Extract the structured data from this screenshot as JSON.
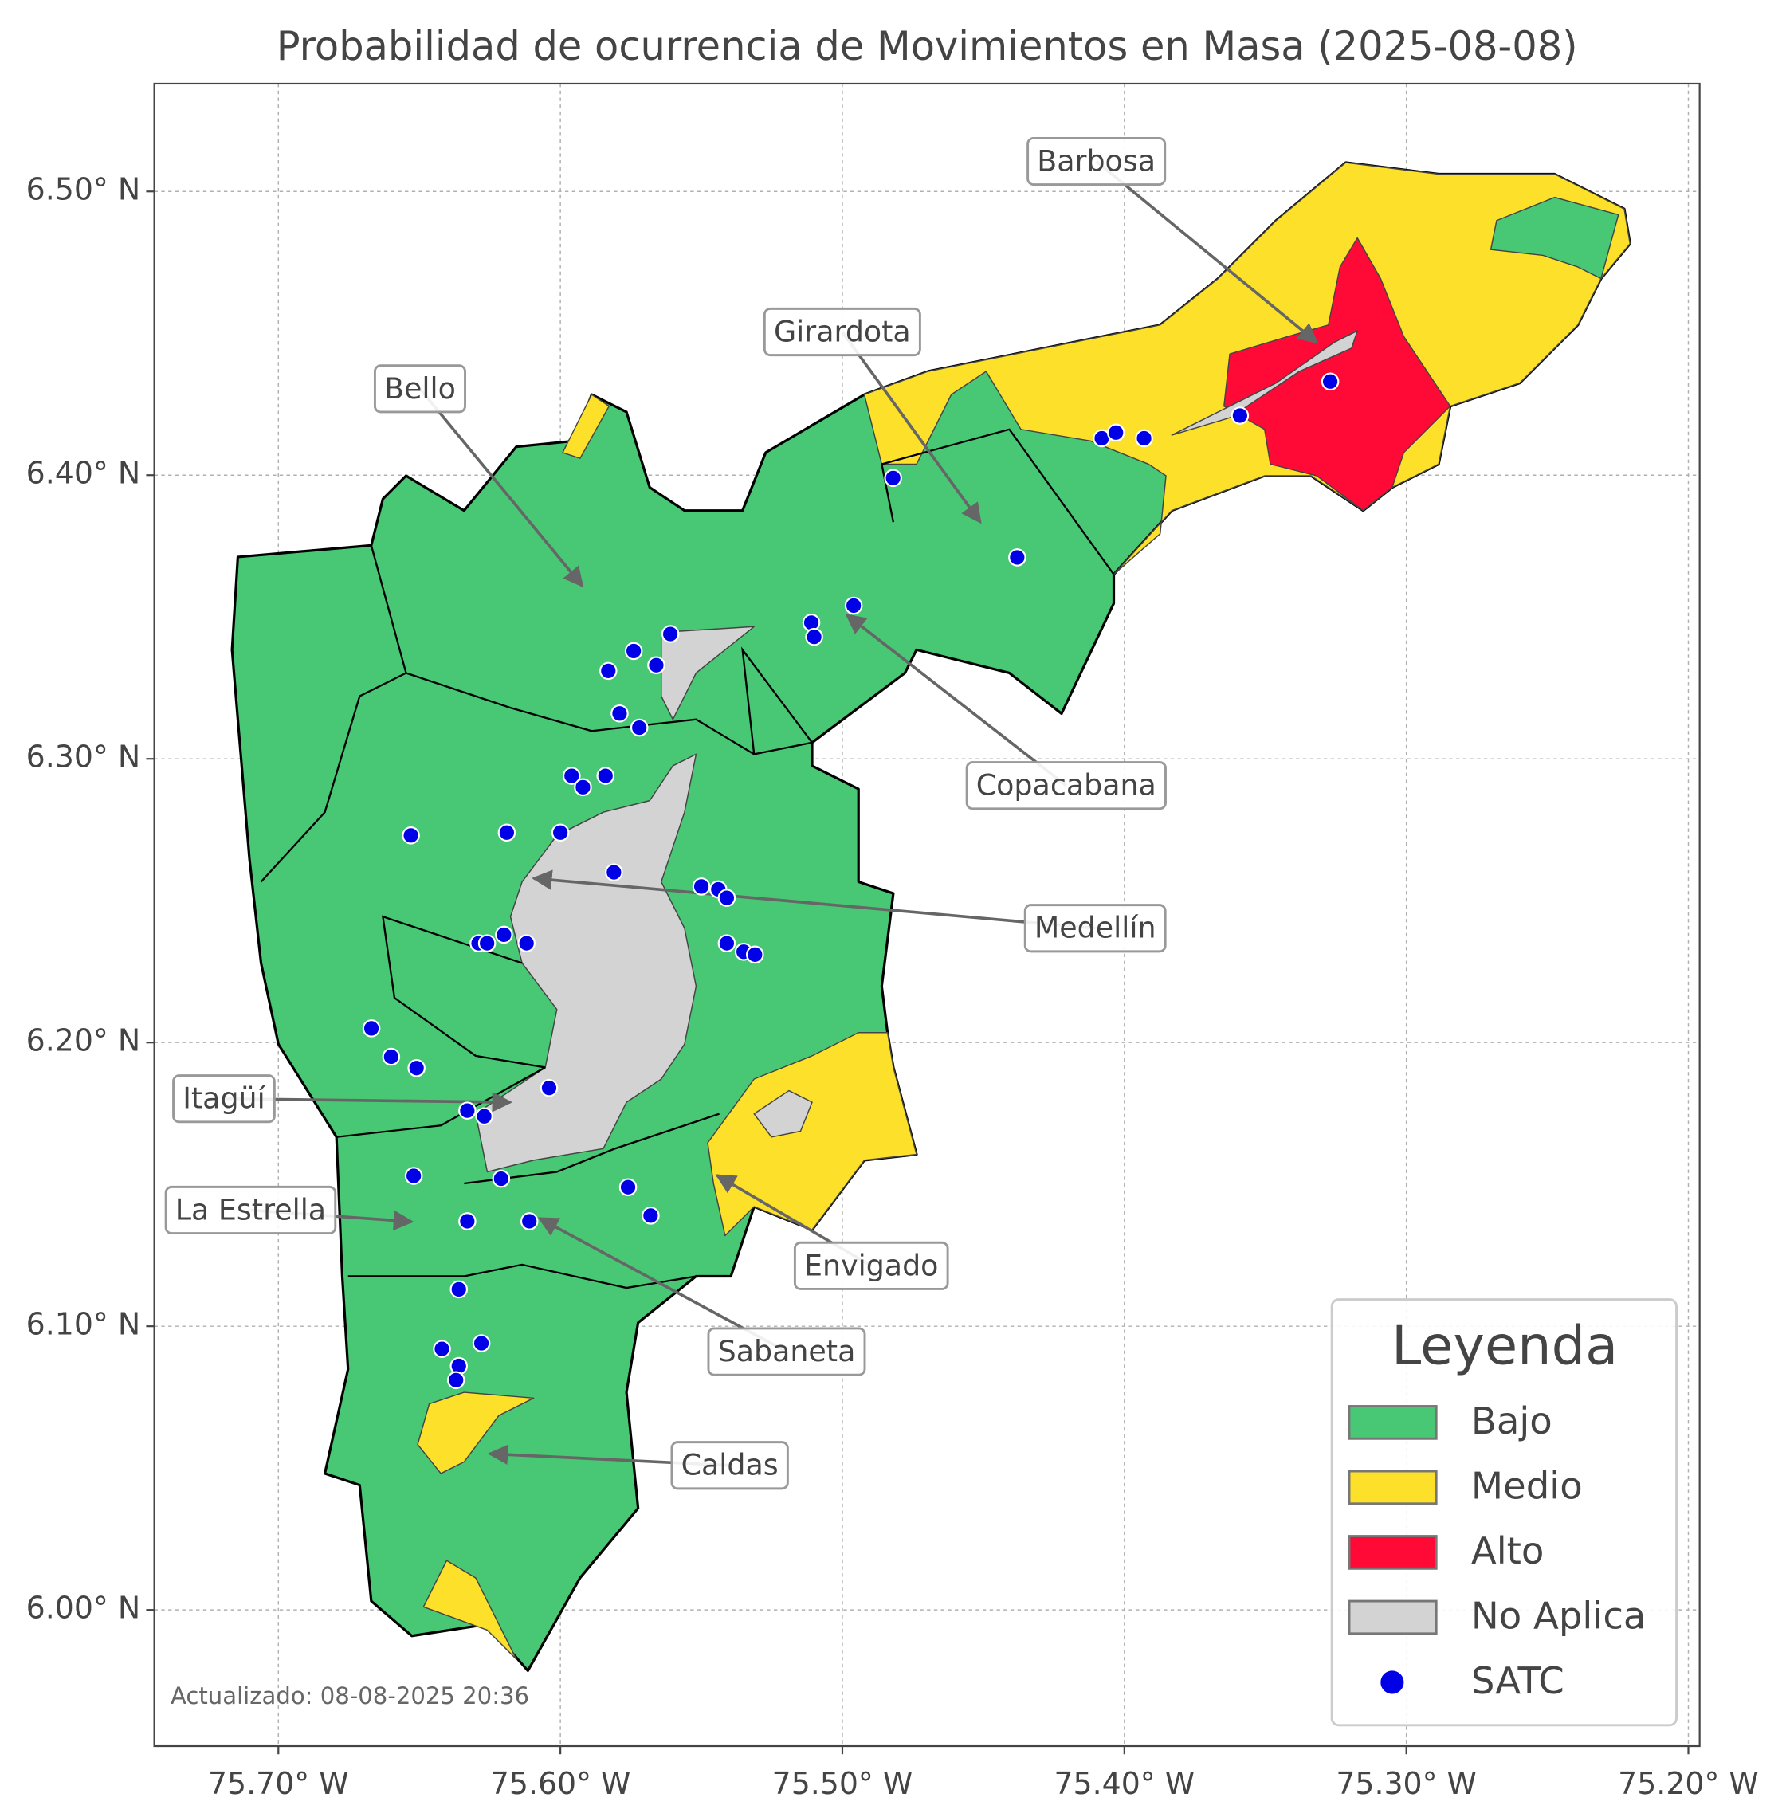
{
  "title": "Probabilidad de ocurrencia de Movimientos en Masa (2025-08-08)",
  "xlim": [
    -75.744,
    -75.196
  ],
  "ylim": [
    5.952,
    6.538
  ],
  "xticks": [
    {
      "value": -75.7,
      "label": "75.70° W"
    },
    {
      "value": -75.6,
      "label": "75.60° W"
    },
    {
      "value": -75.5,
      "label": "75.50° W"
    },
    {
      "value": -75.4,
      "label": "75.40° W"
    },
    {
      "value": -75.3,
      "label": "75.30° W"
    },
    {
      "value": -75.2,
      "label": "75.20° W"
    }
  ],
  "yticks": [
    {
      "value": 6.0,
      "label": "6.00° N"
    },
    {
      "value": 6.1,
      "label": "6.10° N"
    },
    {
      "value": 6.2,
      "label": "6.20° N"
    },
    {
      "value": 6.3,
      "label": "6.30° N"
    },
    {
      "value": 6.4,
      "label": "6.40° N"
    },
    {
      "value": 6.5,
      "label": "6.50° N"
    }
  ],
  "grid": true,
  "legend": {
    "title": "Leyenda",
    "items": [
      {
        "name": "Bajo",
        "color": "#48c774"
      },
      {
        "name": "Medio",
        "color": "#fde02a"
      },
      {
        "name": "Alto",
        "color": "#ff0a36"
      },
      {
        "name": "No Aplica",
        "color": "#d3d3d3"
      }
    ]
  },
  "stations": {
    "name": "SATC",
    "color": "#0000e6",
    "lon": [
      -75.482,
      -75.408,
      -75.403,
      -75.393,
      -75.359,
      -75.327,
      -75.438,
      -75.496,
      -75.511,
      -75.51,
      -75.561,
      -75.574,
      -75.583,
      -75.566,
      -75.579,
      -75.572,
      -75.596,
      -75.592,
      -75.584,
      -75.6,
      -75.653,
      -75.619,
      -75.581,
      -75.55,
      -75.544,
      -75.541,
      -75.629,
      -75.626,
      -75.62,
      -75.612,
      -75.541,
      -75.535,
      -75.531,
      -75.667,
      -75.66,
      -75.651,
      -75.604,
      -75.633,
      -75.627,
      -75.652,
      -75.621,
      -75.576,
      -75.568,
      -75.633,
      -75.611,
      -75.636,
      -75.642,
      -75.628,
      -75.636,
      -75.637
    ],
    "lat": [
      6.399,
      6.413,
      6.415,
      6.413,
      6.421,
      6.433,
      6.371,
      6.354,
      6.348,
      6.343,
      6.344,
      6.338,
      6.331,
      6.333,
      6.316,
      6.311,
      6.294,
      6.29,
      6.294,
      6.274,
      6.273,
      6.274,
      6.26,
      6.255,
      6.254,
      6.251,
      6.235,
      6.235,
      6.238,
      6.235,
      6.235,
      6.232,
      6.231,
      6.205,
      6.195,
      6.191,
      6.184,
      6.176,
      6.174,
      6.153,
      6.152,
      6.149,
      6.139,
      6.137,
      6.137,
      6.113,
      6.092,
      6.094,
      6.086,
      6.081
    ]
  },
  "annotations": [
    "Barbosa",
    "Girardota",
    "Bello",
    "Copacabana",
    "Medellín",
    "Itagüí",
    "La Estrella",
    "Envigado",
    "Sabaneta",
    "Caldas"
  ],
  "footer": "Actualizado: 08-08-2025 20:36"
}
